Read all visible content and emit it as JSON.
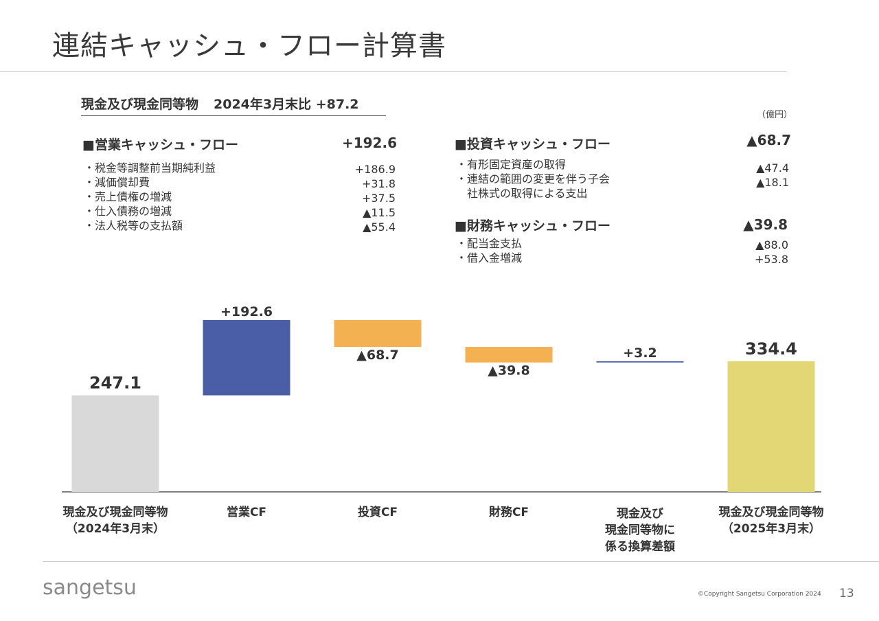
{
  "page": {
    "title": "連結キャッシュ・フロー計算書",
    "summary_label": "現金及び現金同等物",
    "summary_change": "2024年3月末比 +87.2",
    "unit": "（億円）",
    "logo": "sangetsu",
    "copyright": "©Copyright Sangetsu Corporation 2024",
    "page_number": "13"
  },
  "sections": {
    "operating": {
      "title": "■営業キャッシュ・フロー",
      "total": "+192.6",
      "items": [
        {
          "label": "・税金等調整前当期純利益",
          "value": "+186.9"
        },
        {
          "label": "・減価償却費",
          "value": "+31.8"
        },
        {
          "label": "・売上債権の増減",
          "value": "+37.5"
        },
        {
          "label": "・仕入債務の増減",
          "value": "▲11.5"
        },
        {
          "label": "・法人税等の支払額",
          "value": "▲55.4"
        }
      ]
    },
    "investing": {
      "title": "■投資キャッシュ・フロー",
      "total": "▲68.7",
      "items": [
        {
          "label": "・有形固定資産の取得",
          "value": "▲47.4"
        },
        {
          "label": "・連結の範囲の変更を伴う子会",
          "value": "▲18.1"
        },
        {
          "label": "　社株式の取得による支出",
          "value": ""
        }
      ]
    },
    "financing": {
      "title": "■財務キャッシュ・フロー",
      "total": "▲39.8",
      "items": [
        {
          "label": "・配当金支払",
          "value": "▲88.0"
        },
        {
          "label": "・借入金増減",
          "value": "+53.8"
        }
      ]
    }
  },
  "chart_data": {
    "type": "bar",
    "subtype": "waterfall",
    "ylim": [
      0,
      400
    ],
    "categories": [
      "現金及び現金同等物\n（2024年3月末）",
      "営業CF",
      "投資CF",
      "財務CF",
      "現金及び\n現金同等物に\n係る換算差額",
      "現金及び現金同等物\n（2025年3月末）"
    ],
    "bars": [
      {
        "start": 0,
        "end": 247.1,
        "label": "247.1",
        "color": "#d9d9d9",
        "label_pos": "above"
      },
      {
        "start": 247.1,
        "end": 439.7,
        "label": "+192.6",
        "color": "#4a5ea8",
        "label_pos": "above"
      },
      {
        "start": 439.7,
        "end": 371.0,
        "label": "▲68.7",
        "color": "#f4b152",
        "label_pos": "below"
      },
      {
        "start": 371.0,
        "end": 331.2,
        "label": "▲39.8",
        "color": "#f4b152",
        "label_pos": "below"
      },
      {
        "start": 331.2,
        "end": 334.4,
        "label": "+3.2",
        "color": "#4a5ea8",
        "label_pos": "above"
      },
      {
        "start": 0,
        "end": 334.4,
        "label": "334.4",
        "color": "#e2d774",
        "label_pos": "above"
      }
    ]
  }
}
